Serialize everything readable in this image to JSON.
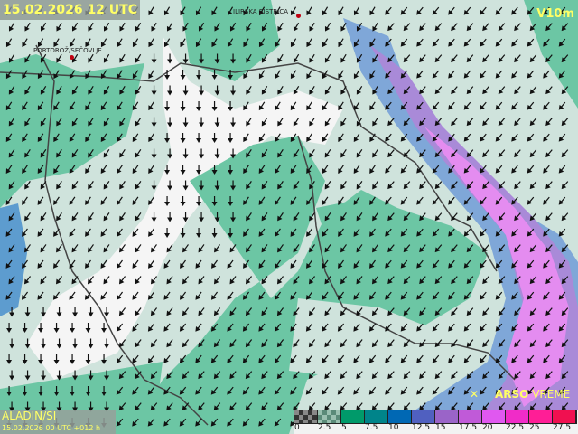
{
  "header": {
    "valid_time": "15.02.2026 12 UTC",
    "product": "V10m"
  },
  "model": {
    "name": "ALADIN/SI",
    "run": "15.02.2026 00 UTC +012 h"
  },
  "brand": {
    "bold": "ARSO",
    "rest": " VREME",
    "icon": "wind-sock-icon"
  },
  "cities": [
    {
      "name": "ILIRSKA BISTRICA"
    },
    {
      "name": "PORTOROŽ/SEČOVLJE"
    }
  ],
  "legend": {
    "labels": [
      "0",
      "2.5",
      "5",
      "7.5",
      "10",
      "12.5",
      "15",
      "17.5",
      "20",
      "22.5",
      "25",
      "27.5"
    ],
    "colors": [
      "checker-dark",
      "checker-green",
      "#009a6a",
      "#00848a",
      "#0068b4",
      "#5060c0",
      "#9a64c8",
      "#c05ad8",
      "#e058f0",
      "#f02cc8",
      "#ff1e96",
      "#f01050"
    ]
  },
  "colors": {
    "base": "#cfe3dc",
    "light_green": "#6cc6a4",
    "calm": "#f5f5f5",
    "label": "#ffff66"
  }
}
